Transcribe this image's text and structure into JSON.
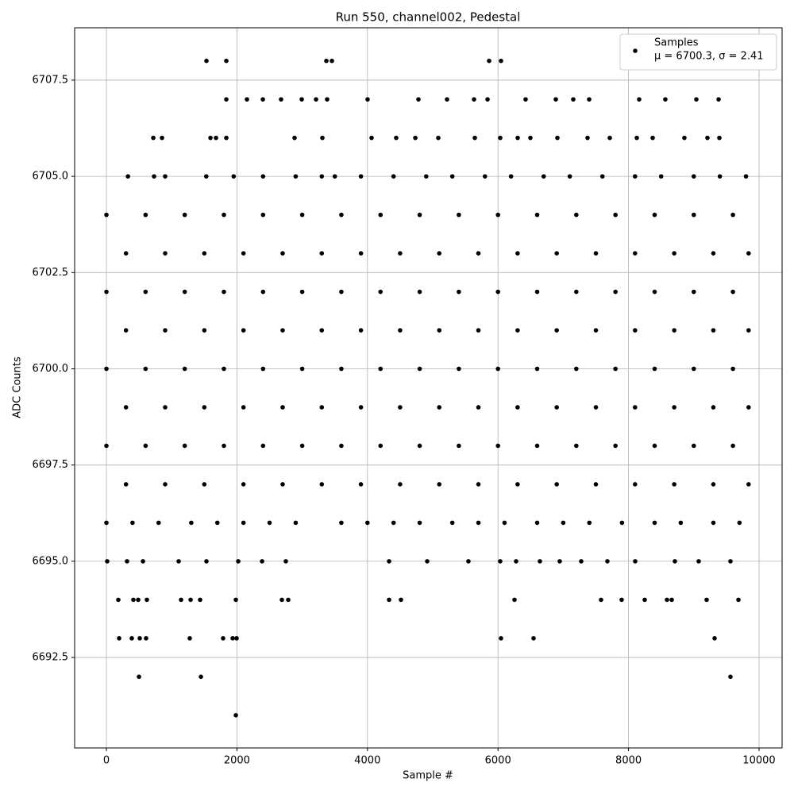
{
  "chart_data": {
    "type": "scatter",
    "title": "Run 550, channel002, Pedestal",
    "xlabel": "Sample #",
    "ylabel": "ADC Counts",
    "legend_note": "μ = 6700.3, σ = 2.41",
    "legend_position": "upper right",
    "grid": true,
    "xlim": [
      -487,
      10353
    ],
    "xticks": [
      0,
      2000,
      4000,
      6000,
      8000,
      10000
    ],
    "ylim": [
      6690.15,
      6708.86
    ],
    "yticks": [
      6692.5,
      {
        "value": 6695,
        "label": "6695.0"
      },
      6697.5,
      {
        "value": 6700,
        "label": "6700.0"
      },
      6702.5,
      {
        "value": 6705,
        "label": "6705.0"
      },
      6707.5
    ],
    "series": [
      {
        "name": "Samples",
        "color": "#000000",
        "x": [
          1533,
          1837,
          3370,
          3455,
          5864,
          6046,
          1837,
          2153,
          2397,
          2676,
          2993,
          3212,
          3382,
          4002,
          4781,
          5219,
          5633,
          5840,
          6423,
          6886,
          7153,
          7397,
          8163,
          8564,
          9039,
          9380,
          718,
          852,
          1594,
          1679,
          1837,
          2883,
          3309,
          4063,
          4440,
          4733,
          5085,
          5645,
          6034,
          6302,
          6496,
          6910,
          7372,
          7713,
          8127,
          8370,
          8856,
          9209,
          9392,
          330,
          730,
          900,
          1530,
          1950,
          2400,
          2900,
          3300,
          3500,
          3900,
          4400,
          4900,
          5300,
          5800,
          6200,
          6700,
          7100,
          7600,
          8100,
          8500,
          9000,
          9400,
          9800,
          0,
          600,
          1200,
          1800,
          2400,
          3000,
          3600,
          4200,
          4800,
          5400,
          6000,
          6600,
          7200,
          7800,
          8400,
          9000,
          9600,
          300,
          900,
          1500,
          2100,
          2700,
          3300,
          3900,
          4500,
          5100,
          5700,
          6300,
          6900,
          7500,
          8100,
          8700,
          9300,
          9840,
          0,
          600,
          1200,
          1800,
          2400,
          3000,
          3600,
          4200,
          4800,
          5400,
          6000,
          6600,
          7200,
          7800,
          8400,
          9000,
          9600,
          300,
          900,
          1500,
          2100,
          2700,
          3300,
          3900,
          4500,
          5100,
          5700,
          6300,
          6900,
          7500,
          8100,
          8700,
          9300,
          9840,
          0,
          600,
          1200,
          1800,
          2400,
          3000,
          3600,
          4200,
          4800,
          5400,
          6000,
          6600,
          7200,
          7800,
          8400,
          9000,
          9600,
          300,
          900,
          1500,
          2100,
          2700,
          3300,
          3900,
          4500,
          5100,
          5700,
          6300,
          6900,
          7500,
          8100,
          8700,
          9300,
          9840,
          0,
          600,
          1200,
          1800,
          2400,
          3000,
          3600,
          4200,
          4800,
          5400,
          6000,
          6600,
          7200,
          7800,
          8400,
          9000,
          9600,
          300,
          900,
          1500,
          2100,
          2700,
          3300,
          3900,
          4500,
          5100,
          5700,
          6300,
          6900,
          7500,
          8100,
          8700,
          9300,
          9840,
          0,
          400,
          800,
          1300,
          1700,
          2100,
          2500,
          2900,
          3600,
          4000,
          4400,
          4800,
          5300,
          5700,
          6100,
          6600,
          7000,
          7400,
          7900,
          8400,
          8800,
          9300,
          9700,
          12,
          316,
          560,
          1107,
          1533,
          2020,
          2385,
          2749,
          4331,
          4915,
          5547,
          6034,
          6277,
          6642,
          6946,
          7275,
          7676,
          8102,
          8710,
          9075,
          9562,
          182,
          413,
          487,
          620,
          1144,
          1290,
          1436,
          1983,
          2689,
          2786,
          4331,
          4513,
          6253,
          7579,
          7895,
          8248,
          8589,
          8662,
          9197,
          9684,
          195,
          389,
          511,
          608,
          1277,
          1788,
          1934,
          1995,
          6046,
          6545,
          9319,
          499,
          1448,
          9562,
          1983
        ],
        "values": [
          6708,
          6708,
          6708,
          6708,
          6708,
          6708,
          6707,
          6707,
          6707,
          6707,
          6707,
          6707,
          6707,
          6707,
          6707,
          6707,
          6707,
          6707,
          6707,
          6707,
          6707,
          6707,
          6707,
          6707,
          6707,
          6707,
          6706,
          6706,
          6706,
          6706,
          6706,
          6706,
          6706,
          6706,
          6706,
          6706,
          6706,
          6706,
          6706,
          6706,
          6706,
          6706,
          6706,
          6706,
          6706,
          6706,
          6706,
          6706,
          6706,
          6705,
          6705,
          6705,
          6705,
          6705,
          6705,
          6705,
          6705,
          6705,
          6705,
          6705,
          6705,
          6705,
          6705,
          6705,
          6705,
          6705,
          6705,
          6705,
          6705,
          6705,
          6705,
          6705,
          6704,
          6704,
          6704,
          6704,
          6704,
          6704,
          6704,
          6704,
          6704,
          6704,
          6704,
          6704,
          6704,
          6704,
          6704,
          6704,
          6704,
          6703,
          6703,
          6703,
          6703,
          6703,
          6703,
          6703,
          6703,
          6703,
          6703,
          6703,
          6703,
          6703,
          6703,
          6703,
          6703,
          6703,
          6702,
          6702,
          6702,
          6702,
          6702,
          6702,
          6702,
          6702,
          6702,
          6702,
          6702,
          6702,
          6702,
          6702,
          6702,
          6702,
          6702,
          6701,
          6701,
          6701,
          6701,
          6701,
          6701,
          6701,
          6701,
          6701,
          6701,
          6701,
          6701,
          6701,
          6701,
          6701,
          6701,
          6701,
          6700,
          6700,
          6700,
          6700,
          6700,
          6700,
          6700,
          6700,
          6700,
          6700,
          6700,
          6700,
          6700,
          6700,
          6700,
          6700,
          6700,
          6699,
          6699,
          6699,
          6699,
          6699,
          6699,
          6699,
          6699,
          6699,
          6699,
          6699,
          6699,
          6699,
          6699,
          6699,
          6699,
          6699,
          6698,
          6698,
          6698,
          6698,
          6698,
          6698,
          6698,
          6698,
          6698,
          6698,
          6698,
          6698,
          6698,
          6698,
          6698,
          6698,
          6698,
          6697,
          6697,
          6697,
          6697,
          6697,
          6697,
          6697,
          6697,
          6697,
          6697,
          6697,
          6697,
          6697,
          6697,
          6697,
          6697,
          6697,
          6696,
          6696,
          6696,
          6696,
          6696,
          6696,
          6696,
          6696,
          6696,
          6696,
          6696,
          6696,
          6696,
          6696,
          6696,
          6696,
          6696,
          6696,
          6696,
          6696,
          6696,
          6696,
          6696,
          6695,
          6695,
          6695,
          6695,
          6695,
          6695,
          6695,
          6695,
          6695,
          6695,
          6695,
          6695,
          6695,
          6695,
          6695,
          6695,
          6695,
          6695,
          6695,
          6695,
          6695,
          6694,
          6694,
          6694,
          6694,
          6694,
          6694,
          6694,
          6694,
          6694,
          6694,
          6694,
          6694,
          6694,
          6694,
          6694,
          6694,
          6694,
          6694,
          6694,
          6694,
          6693,
          6693,
          6693,
          6693,
          6693,
          6693,
          6693,
          6693,
          6693,
          6693,
          6693,
          6692,
          6692,
          6692,
          6691
        ]
      }
    ]
  }
}
